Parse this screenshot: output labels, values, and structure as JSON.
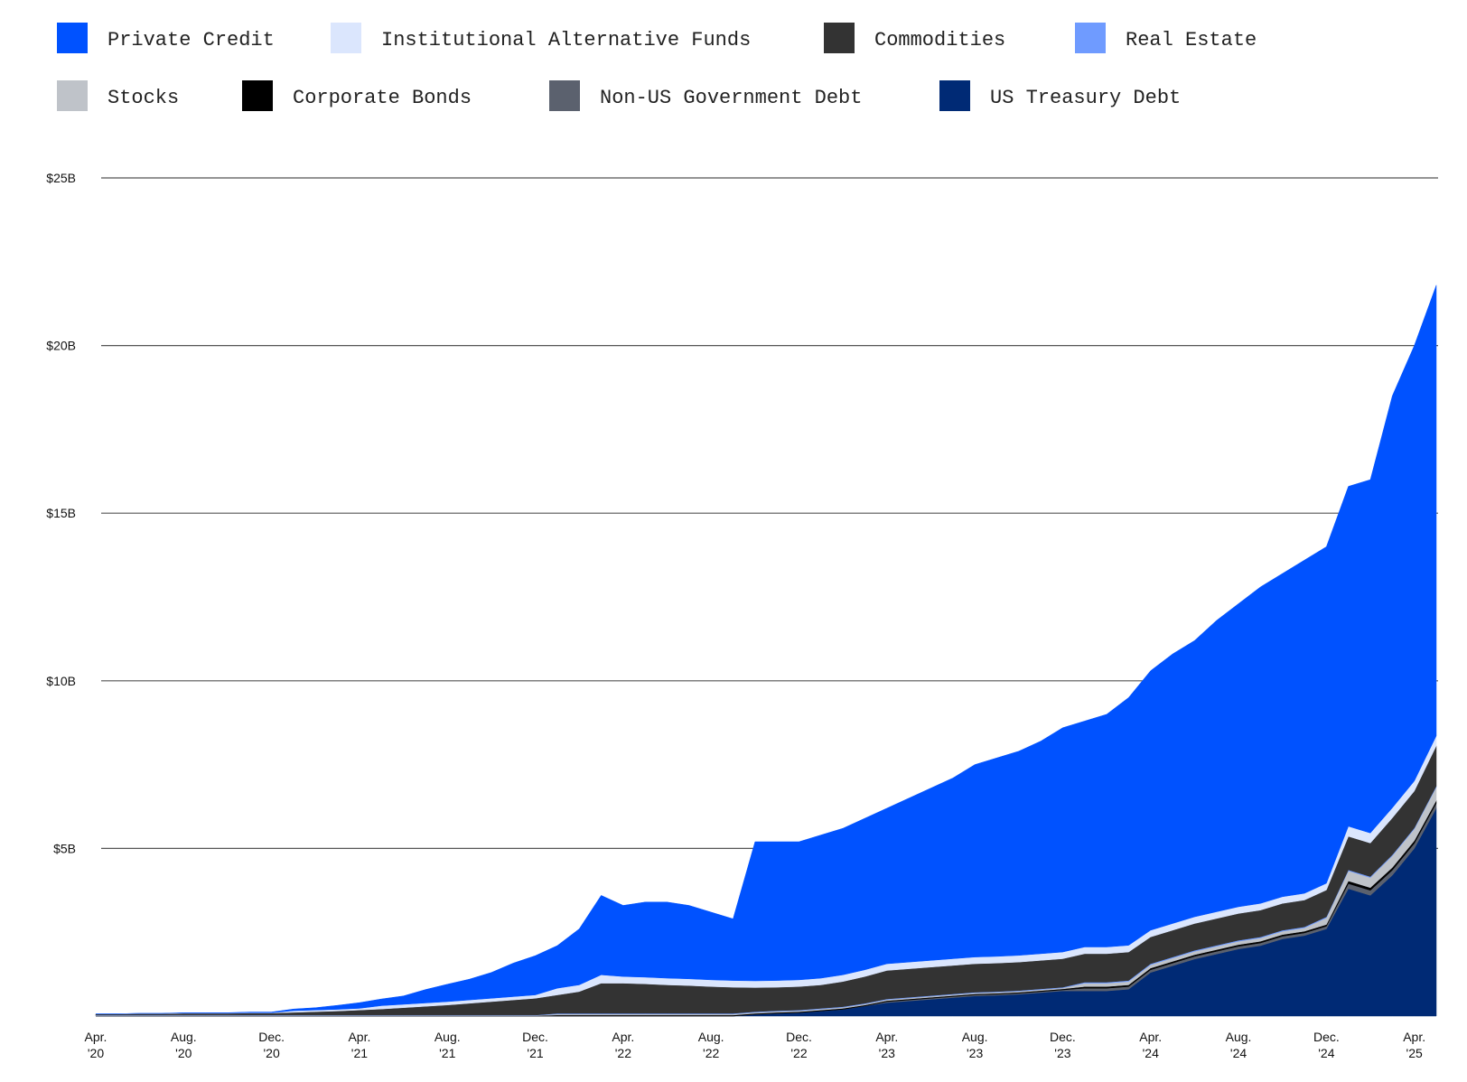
{
  "chart_data": {
    "type": "stacked-area",
    "x": [
      "2020-04",
      "2020-05",
      "2020-06",
      "2020-07",
      "2020-08",
      "2020-09",
      "2020-10",
      "2020-11",
      "2020-12",
      "2021-01",
      "2021-02",
      "2021-03",
      "2021-04",
      "2021-05",
      "2021-06",
      "2021-07",
      "2021-08",
      "2021-09",
      "2021-10",
      "2021-11",
      "2021-12",
      "2022-01",
      "2022-02",
      "2022-03",
      "2022-04",
      "2022-05",
      "2022-06",
      "2022-07",
      "2022-08",
      "2022-09",
      "2022-10",
      "2022-11",
      "2022-12",
      "2023-01",
      "2023-02",
      "2023-03",
      "2023-04",
      "2023-05",
      "2023-06",
      "2023-07",
      "2023-08",
      "2023-09",
      "2023-10",
      "2023-11",
      "2023-12",
      "2024-01",
      "2024-02",
      "2024-03",
      "2024-04",
      "2024-05",
      "2024-06",
      "2024-07",
      "2024-08",
      "2024-09",
      "2024-10",
      "2024-11",
      "2024-12",
      "2025-01",
      "2025-02",
      "2025-03",
      "2025-04",
      "2025-05"
    ],
    "series": [
      {
        "name": "Private Credit",
        "color": "#0052ff",
        "values": [
          0,
          0,
          0,
          0,
          0.01,
          0.01,
          0.01,
          0.02,
          0.02,
          0.05,
          0.07,
          0.12,
          0.17,
          0.2,
          0.25,
          0.4,
          0.52,
          0.62,
          0.77,
          1.0,
          1.17,
          1.27,
          1.67,
          2.37,
          2.12,
          2.24,
          2.27,
          2.19,
          2.02,
          1.84,
          4.15,
          4.14,
          4.12,
          4.27,
          4.37,
          4.52,
          4.64,
          4.89,
          5.14,
          5.39,
          5.74,
          5.92,
          6.09,
          6.34,
          6.69,
          6.74,
          6.94,
          7.39,
          7.74,
          8.04,
          8.24,
          8.69,
          9.04,
          9.44,
          9.64,
          9.94,
          10.04,
          10.14,
          10.54,
          12.29,
          12.99,
          13.44
        ]
      },
      {
        "name": "Institutional Alternative Funds",
        "color": "#dbe6fd",
        "values": [
          0.01,
          0.01,
          0.01,
          0.01,
          0.01,
          0.01,
          0.01,
          0.01,
          0.01,
          0.05,
          0.05,
          0.05,
          0.05,
          0.1,
          0.1,
          0.1,
          0.1,
          0.1,
          0.1,
          0.1,
          0.1,
          0.2,
          0.2,
          0.25,
          0.2,
          0.2,
          0.2,
          0.2,
          0.2,
          0.2,
          0.2,
          0.2,
          0.2,
          0.2,
          0.2,
          0.2,
          0.2,
          0.2,
          0.2,
          0.2,
          0.2,
          0.2,
          0.2,
          0.2,
          0.2,
          0.2,
          0.2,
          0.2,
          0.2,
          0.2,
          0.2,
          0.2,
          0.2,
          0.2,
          0.2,
          0.2,
          0.2,
          0.3,
          0.3,
          0.3,
          0.3,
          0.3
        ]
      },
      {
        "name": "Commodities",
        "color": "#333333",
        "values": [
          0.03,
          0.03,
          0.04,
          0.04,
          0.05,
          0.05,
          0.05,
          0.06,
          0.06,
          0.08,
          0.1,
          0.12,
          0.15,
          0.18,
          0.22,
          0.26,
          0.3,
          0.35,
          0.4,
          0.45,
          0.5,
          0.55,
          0.65,
          0.9,
          0.9,
          0.88,
          0.85,
          0.83,
          0.8,
          0.78,
          0.72,
          0.7,
          0.7,
          0.7,
          0.75,
          0.8,
          0.85,
          0.85,
          0.85,
          0.85,
          0.85,
          0.85,
          0.85,
          0.85,
          0.85,
          0.85,
          0.85,
          0.85,
          0.8,
          0.8,
          0.8,
          0.8,
          0.8,
          0.8,
          0.8,
          0.8,
          0.8,
          1.0,
          1.0,
          1.1,
          1.1,
          1.2
        ]
      },
      {
        "name": "Real Estate",
        "color": "#6f9bff",
        "values": [
          0.01,
          0.01,
          0.01,
          0.01,
          0.01,
          0.01,
          0.01,
          0.01,
          0.01,
          0.01,
          0.01,
          0.01,
          0.01,
          0.01,
          0.01,
          0.01,
          0.01,
          0.01,
          0.01,
          0.01,
          0.01,
          0.02,
          0.02,
          0.02,
          0.02,
          0.02,
          0.02,
          0.02,
          0.02,
          0.02,
          0.02,
          0.02,
          0.02,
          0.02,
          0.02,
          0.02,
          0.02,
          0.02,
          0.02,
          0.02,
          0.02,
          0.02,
          0.02,
          0.02,
          0.02,
          0.03,
          0.03,
          0.03,
          0.03,
          0.03,
          0.03,
          0.03,
          0.03,
          0.03,
          0.03,
          0.03,
          0.03,
          0.03,
          0.03,
          0.03,
          0.03,
          0.03
        ]
      },
      {
        "name": "Stocks",
        "color": "#bfc3c9",
        "values": [
          0.01,
          0.01,
          0.01,
          0.01,
          0.01,
          0.01,
          0.01,
          0.01,
          0.01,
          0.01,
          0.01,
          0.01,
          0.01,
          0.01,
          0.01,
          0.01,
          0.01,
          0.01,
          0.01,
          0.01,
          0.01,
          0.03,
          0.03,
          0.03,
          0.03,
          0.03,
          0.03,
          0.03,
          0.03,
          0.03,
          0.03,
          0.03,
          0.03,
          0.03,
          0.03,
          0.03,
          0.03,
          0.03,
          0.03,
          0.03,
          0.03,
          0.03,
          0.03,
          0.03,
          0.03,
          0.1,
          0.1,
          0.1,
          0.1,
          0.1,
          0.1,
          0.1,
          0.1,
          0.1,
          0.1,
          0.1,
          0.2,
          0.3,
          0.3,
          0.35,
          0.35,
          0.4
        ]
      },
      {
        "name": "Corporate Bonds",
        "color": "#000000",
        "values": [
          0.01,
          0.01,
          0.01,
          0.01,
          0.01,
          0.01,
          0.01,
          0.01,
          0.01,
          0.01,
          0.01,
          0.01,
          0.01,
          0.01,
          0.01,
          0.01,
          0.01,
          0.01,
          0.01,
          0.01,
          0.01,
          0.03,
          0.03,
          0.03,
          0.03,
          0.03,
          0.03,
          0.03,
          0.03,
          0.03,
          0.03,
          0.03,
          0.03,
          0.03,
          0.03,
          0.03,
          0.03,
          0.03,
          0.03,
          0.03,
          0.03,
          0.03,
          0.03,
          0.03,
          0.03,
          0.05,
          0.05,
          0.05,
          0.05,
          0.05,
          0.05,
          0.05,
          0.05,
          0.05,
          0.05,
          0.05,
          0.05,
          0.08,
          0.08,
          0.08,
          0.08,
          0.08
        ]
      },
      {
        "name": "Non-US Government Debt",
        "color": "#5b616e",
        "values": [
          0,
          0,
          0,
          0,
          0,
          0,
          0,
          0,
          0,
          0,
          0,
          0,
          0,
          0,
          0,
          0,
          0,
          0,
          0,
          0,
          0,
          0,
          0,
          0,
          0,
          0,
          0,
          0,
          0,
          0,
          0,
          0,
          0,
          0,
          0,
          0,
          0.03,
          0.03,
          0.03,
          0.03,
          0.03,
          0.03,
          0.03,
          0.03,
          0.03,
          0.08,
          0.08,
          0.08,
          0.08,
          0.08,
          0.08,
          0.08,
          0.08,
          0.08,
          0.08,
          0.08,
          0.08,
          0.15,
          0.15,
          0.15,
          0.15,
          0.15
        ]
      },
      {
        "name": "US Treasury Debt",
        "color": "#002a75",
        "values": [
          0,
          0,
          0,
          0,
          0,
          0,
          0,
          0,
          0,
          0,
          0,
          0,
          0,
          0,
          0,
          0,
          0,
          0,
          0,
          0,
          0,
          0,
          0,
          0,
          0,
          0,
          0,
          0,
          0,
          0,
          0.05,
          0.08,
          0.1,
          0.15,
          0.2,
          0.3,
          0.4,
          0.45,
          0.5,
          0.55,
          0.6,
          0.62,
          0.65,
          0.7,
          0.75,
          0.75,
          0.75,
          0.8,
          1.3,
          1.5,
          1.7,
          1.85,
          2.0,
          2.1,
          2.3,
          2.4,
          2.6,
          3.8,
          3.6,
          4.2,
          5.0,
          6.2
        ]
      }
    ],
    "ylim": [
      0,
      25
    ],
    "yticks": [
      {
        "value": 5,
        "label": "$5B"
      },
      {
        "value": 10,
        "label": "$10B"
      },
      {
        "value": 15,
        "label": "$15B"
      },
      {
        "value": 20,
        "label": "$20B"
      },
      {
        "value": 25,
        "label": "$25B"
      }
    ],
    "xticks": [
      {
        "value": "2020-04",
        "label": "Apr. '20"
      },
      {
        "value": "2020-08",
        "label": "Aug. '20"
      },
      {
        "value": "2020-12",
        "label": "Dec. '20"
      },
      {
        "value": "2021-04",
        "label": "Apr. '21"
      },
      {
        "value": "2021-08",
        "label": "Aug. '21"
      },
      {
        "value": "2021-12",
        "label": "Dec. '21"
      },
      {
        "value": "2022-04",
        "label": "Apr. '22"
      },
      {
        "value": "2022-08",
        "label": "Aug. '22"
      },
      {
        "value": "2022-12",
        "label": "Dec. '22"
      },
      {
        "value": "2023-04",
        "label": "Apr. '23"
      },
      {
        "value": "2023-08",
        "label": "Aug. '23"
      },
      {
        "value": "2023-12",
        "label": "Dec. '23"
      },
      {
        "value": "2024-04",
        "label": "Apr. '24"
      },
      {
        "value": "2024-08",
        "label": "Aug. '24"
      },
      {
        "value": "2024-12",
        "label": "Dec. '24"
      },
      {
        "value": "2025-04",
        "label": "Apr. '25"
      }
    ],
    "grid": true
  }
}
